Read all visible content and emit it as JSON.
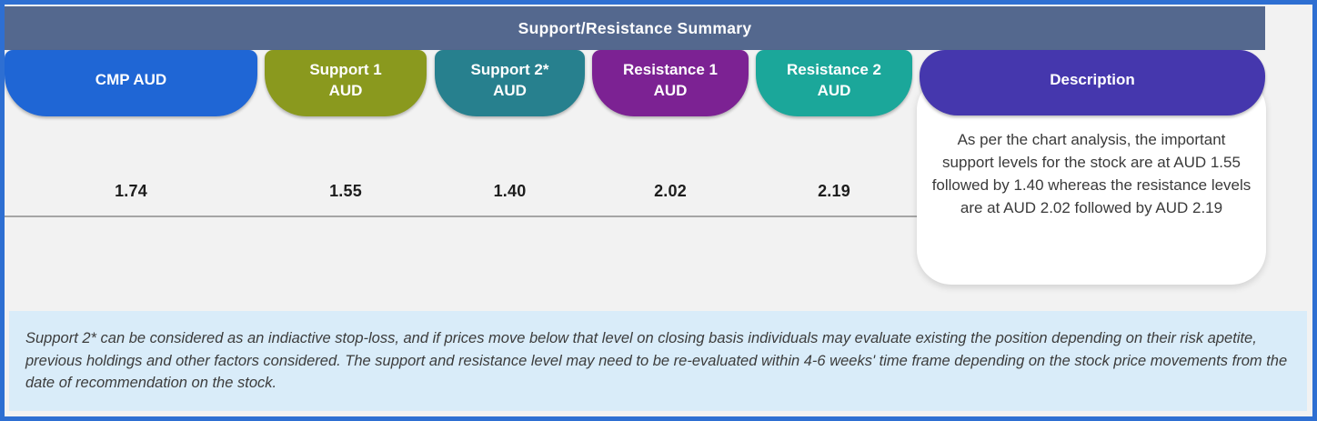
{
  "table": {
    "title": "Support/Resistance Summary",
    "columns": [
      {
        "label": "CMP AUD",
        "value": "1.74",
        "color": "#1f66d5"
      },
      {
        "label": "Support 1\nAUD",
        "value": "1.55",
        "color": "#8a991e"
      },
      {
        "label": "Support 2*\nAUD",
        "value": "1.40",
        "color": "#27808e"
      },
      {
        "label": "Resistance 1\nAUD",
        "value": "2.02",
        "color": "#7c2293"
      },
      {
        "label": "Resistance 2\nAUD",
        "value": "2.19",
        "color": "#1ba79a"
      }
    ],
    "description": {
      "label": "Description",
      "color": "#4537ad",
      "text": "As per the chart analysis, the important support levels for the stock are at AUD 1.55 followed by 1.40 whereas the resistance levels are at AUD 2.02 followed by AUD 2.19"
    }
  },
  "footnote": {
    "text": "Support 2* can be considered as an indiactive stop-loss, and if prices move below that level on closing basis individuals may evaluate existing the position depending on their risk apetite, previous holdings and other factors considered. The support and resistance level may need to be re-evaluated within 4-6 weeks' time frame depending on the stock price movements from  the date of recommendation on the stock."
  },
  "colors": {
    "frame_border": "#2e6fd2",
    "header_bar": "#54688e",
    "background": "#f2f2f2",
    "footnote_background": "#d9ecf9",
    "card_background": "#ffffff",
    "divider_line": "#a6a6a6"
  }
}
